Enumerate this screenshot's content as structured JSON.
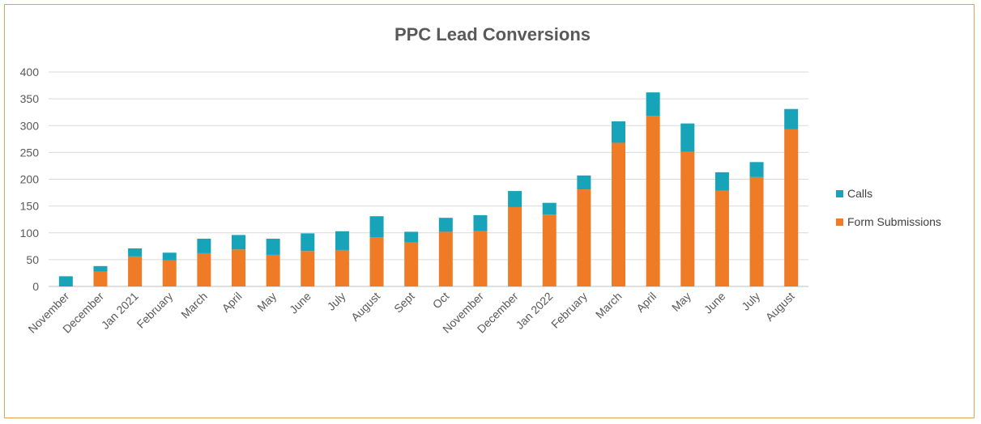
{
  "chart_data": {
    "type": "bar",
    "stacked": true,
    "title": "PPC Lead Conversions",
    "xlabel": "",
    "ylabel": "",
    "ylim": [
      0,
      400
    ],
    "yticks": [
      0,
      50,
      100,
      150,
      200,
      250,
      300,
      350,
      400
    ],
    "grid": true,
    "legend_position": "right",
    "categories": [
      "November",
      "December",
      "Jan 2021",
      "February",
      "March",
      "April",
      "May",
      "June",
      "July",
      "August",
      "Sept",
      "Oct",
      "November",
      "December",
      "Jan 2022",
      "February",
      "March",
      "April",
      "May",
      "June",
      "July",
      "August"
    ],
    "series": [
      {
        "name": "Form Submissions",
        "color": "#f07b27",
        "values": [
          0,
          28,
          56,
          49,
          62,
          69,
          59,
          66,
          68,
          92,
          82,
          102,
          103,
          148,
          134,
          181,
          268,
          318,
          251,
          179,
          204,
          293
        ]
      },
      {
        "name": "Calls",
        "color": "#17a3b8",
        "values": [
          19,
          10,
          15,
          14,
          27,
          27,
          30,
          33,
          35,
          39,
          20,
          26,
          30,
          30,
          22,
          26,
          40,
          44,
          53,
          34,
          28,
          38
        ]
      }
    ]
  }
}
